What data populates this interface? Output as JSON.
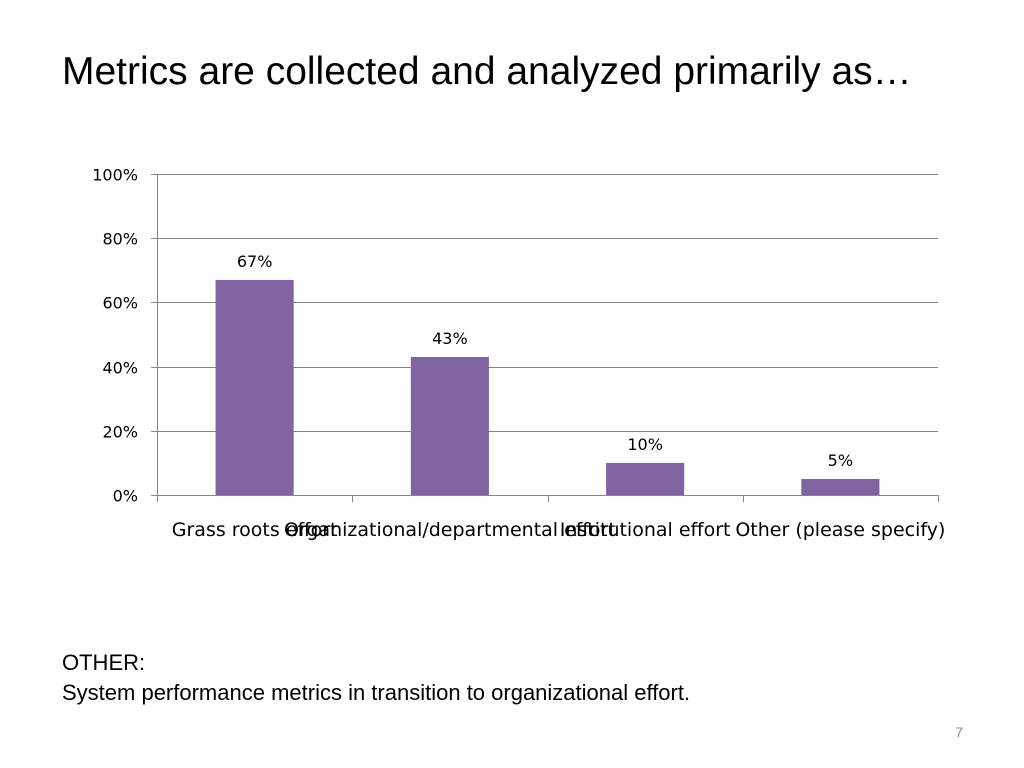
{
  "slide": {
    "title": "Metrics are collected and analyzed primarily as…",
    "note_heading": "OTHER:",
    "note_body": "System performance metrics in transition to organizational effort.",
    "page_number": "7"
  },
  "chart_data": {
    "type": "bar",
    "categories": [
      "Grass roots effort",
      "Organizational/departmental effort",
      "Institutional effort",
      "Other (please specify)"
    ],
    "values": [
      67,
      43,
      10,
      5
    ],
    "data_labels": [
      "67%",
      "43%",
      "10%",
      "5%"
    ],
    "ylim": [
      0,
      100
    ],
    "yticks": [
      0,
      20,
      40,
      60,
      80,
      100
    ],
    "ytick_labels": [
      "0%",
      "20%",
      "40%",
      "60%",
      "80%",
      "100%"
    ],
    "grid": true,
    "legend": "none",
    "bar_color": "#8064a2",
    "grid_color": "#868686"
  }
}
